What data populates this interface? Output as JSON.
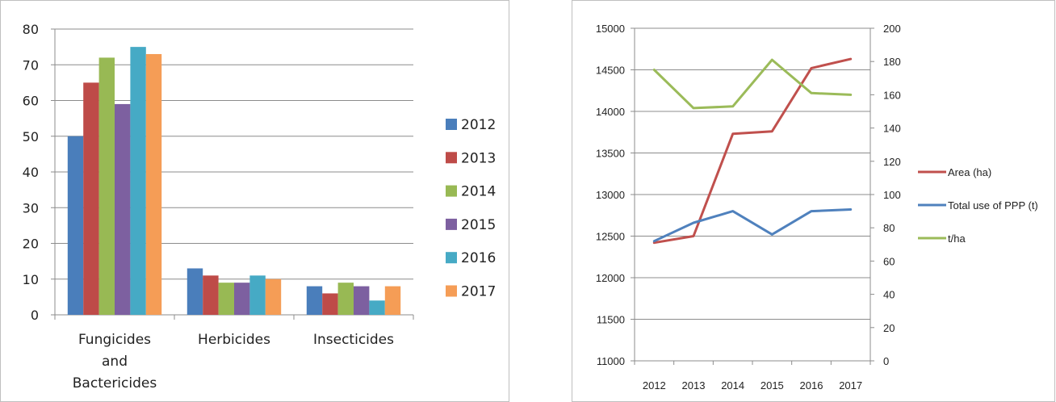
{
  "chart_data": [
    {
      "type": "bar",
      "title": "",
      "categories": [
        "Fungicides and Bactericides",
        "Herbicides",
        "Insecticides"
      ],
      "category_lines": [
        [
          "Fungicides",
          "and",
          "Bactericides"
        ],
        [
          "Herbicides"
        ],
        [
          "Insecticides"
        ]
      ],
      "series": [
        {
          "name": "2012",
          "values": [
            50,
            13,
            8
          ],
          "color": "#4A7EBB"
        },
        {
          "name": "2013",
          "values": [
            65,
            11,
            6
          ],
          "color": "#BE4B48"
        },
        {
          "name": "2014",
          "values": [
            72,
            9,
            9
          ],
          "color": "#98B954"
        },
        {
          "name": "2015",
          "values": [
            59,
            9,
            8
          ],
          "color": "#7D60A0"
        },
        {
          "name": "2016",
          "values": [
            75,
            11,
            4
          ],
          "color": "#46AAC5"
        },
        {
          "name": "2017",
          "values": [
            73,
            10,
            8
          ],
          "color": "#F59D56"
        }
      ],
      "ylim": [
        0,
        80
      ],
      "yticks": [
        "0",
        "10",
        "20",
        "30",
        "40",
        "50",
        "60",
        "70",
        "80"
      ],
      "grid": true,
      "legend": "right"
    },
    {
      "type": "line",
      "title": "",
      "x": [
        "2012",
        "2013",
        "2014",
        "2015",
        "2016",
        "2017"
      ],
      "series": [
        {
          "name": "Area (ha)",
          "axis": "left",
          "values": [
            12420,
            12500,
            13730,
            13760,
            14520,
            14630
          ],
          "color": "#C0504D"
        },
        {
          "name": "Total use of PPP (t)",
          "axis": "right",
          "values": [
            72,
            83,
            90,
            76,
            90,
            91
          ],
          "color": "#4F81BD"
        },
        {
          "name": "t/ha",
          "axis": "right",
          "values": [
            175,
            152,
            153,
            181,
            161,
            160
          ],
          "color": "#9BBB59"
        }
      ],
      "ylim_left": [
        11000,
        15000
      ],
      "yticks_left": [
        "11000",
        "11500",
        "12000",
        "12500",
        "13000",
        "13500",
        "14000",
        "14500",
        "15000"
      ],
      "ylim_right": [
        0,
        200
      ],
      "yticks_right": [
        "0",
        "20",
        "40",
        "60",
        "80",
        "100",
        "120",
        "140",
        "160",
        "180",
        "200"
      ],
      "grid": true,
      "legend": "right"
    }
  ]
}
